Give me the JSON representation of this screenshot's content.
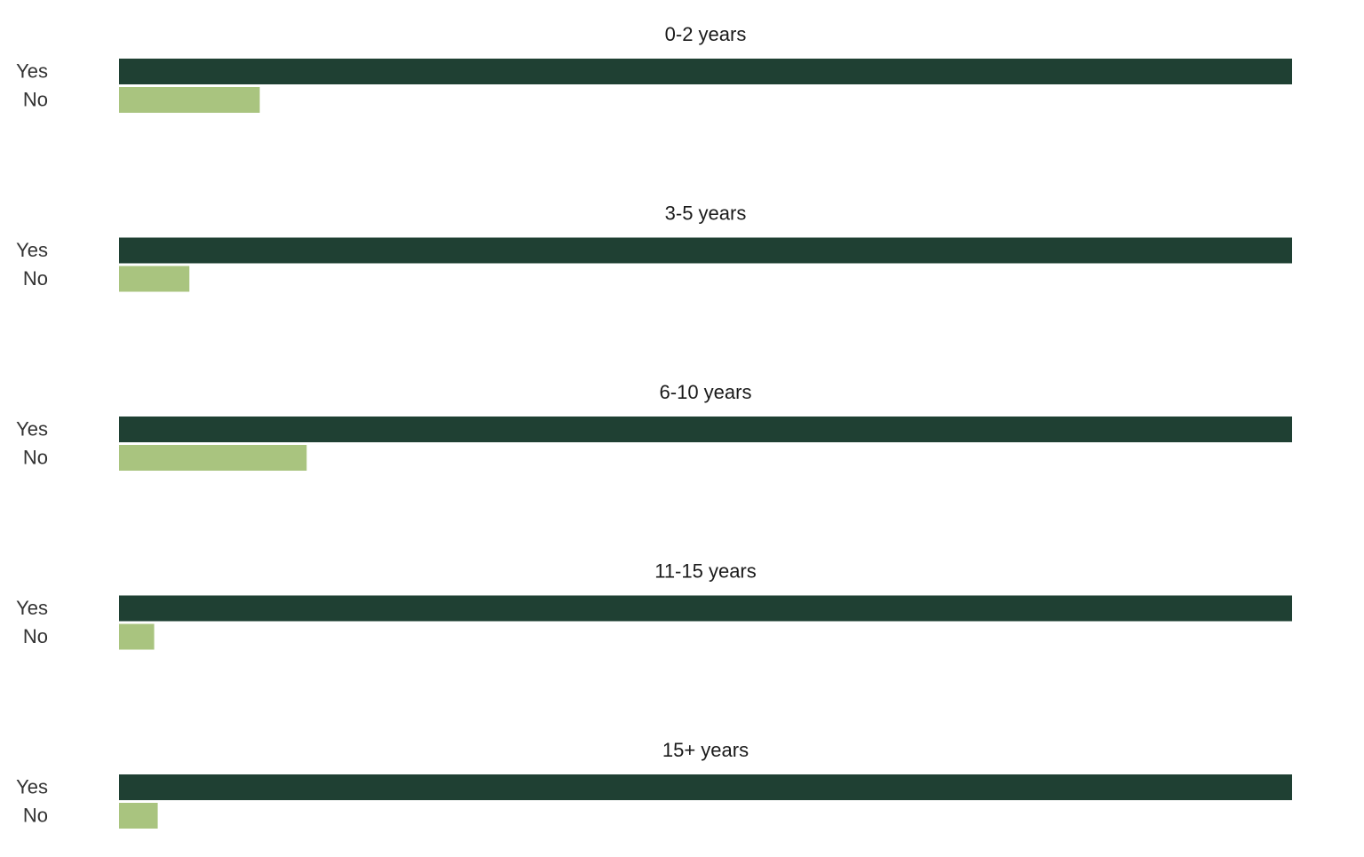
{
  "chart_data": {
    "type": "bar",
    "orientation": "horizontal",
    "layout": "small-multiples",
    "categories": [
      "Yes",
      "No"
    ],
    "colors": {
      "Yes": "#1f4033",
      "No": "#a9c47f"
    },
    "xlim": [
      0,
      1
    ],
    "grid": false,
    "legend": "none",
    "panels": [
      {
        "title": "0-2 years",
        "values": [
          1.0,
          0.12
        ]
      },
      {
        "title": "3-5 years",
        "values": [
          1.0,
          0.06
        ]
      },
      {
        "title": "6-10 years",
        "values": [
          1.0,
          0.16
        ]
      },
      {
        "title": "11-15 years",
        "values": [
          1.0,
          0.03
        ]
      },
      {
        "title": "15+ years",
        "values": [
          1.0,
          0.033
        ]
      }
    ]
  }
}
